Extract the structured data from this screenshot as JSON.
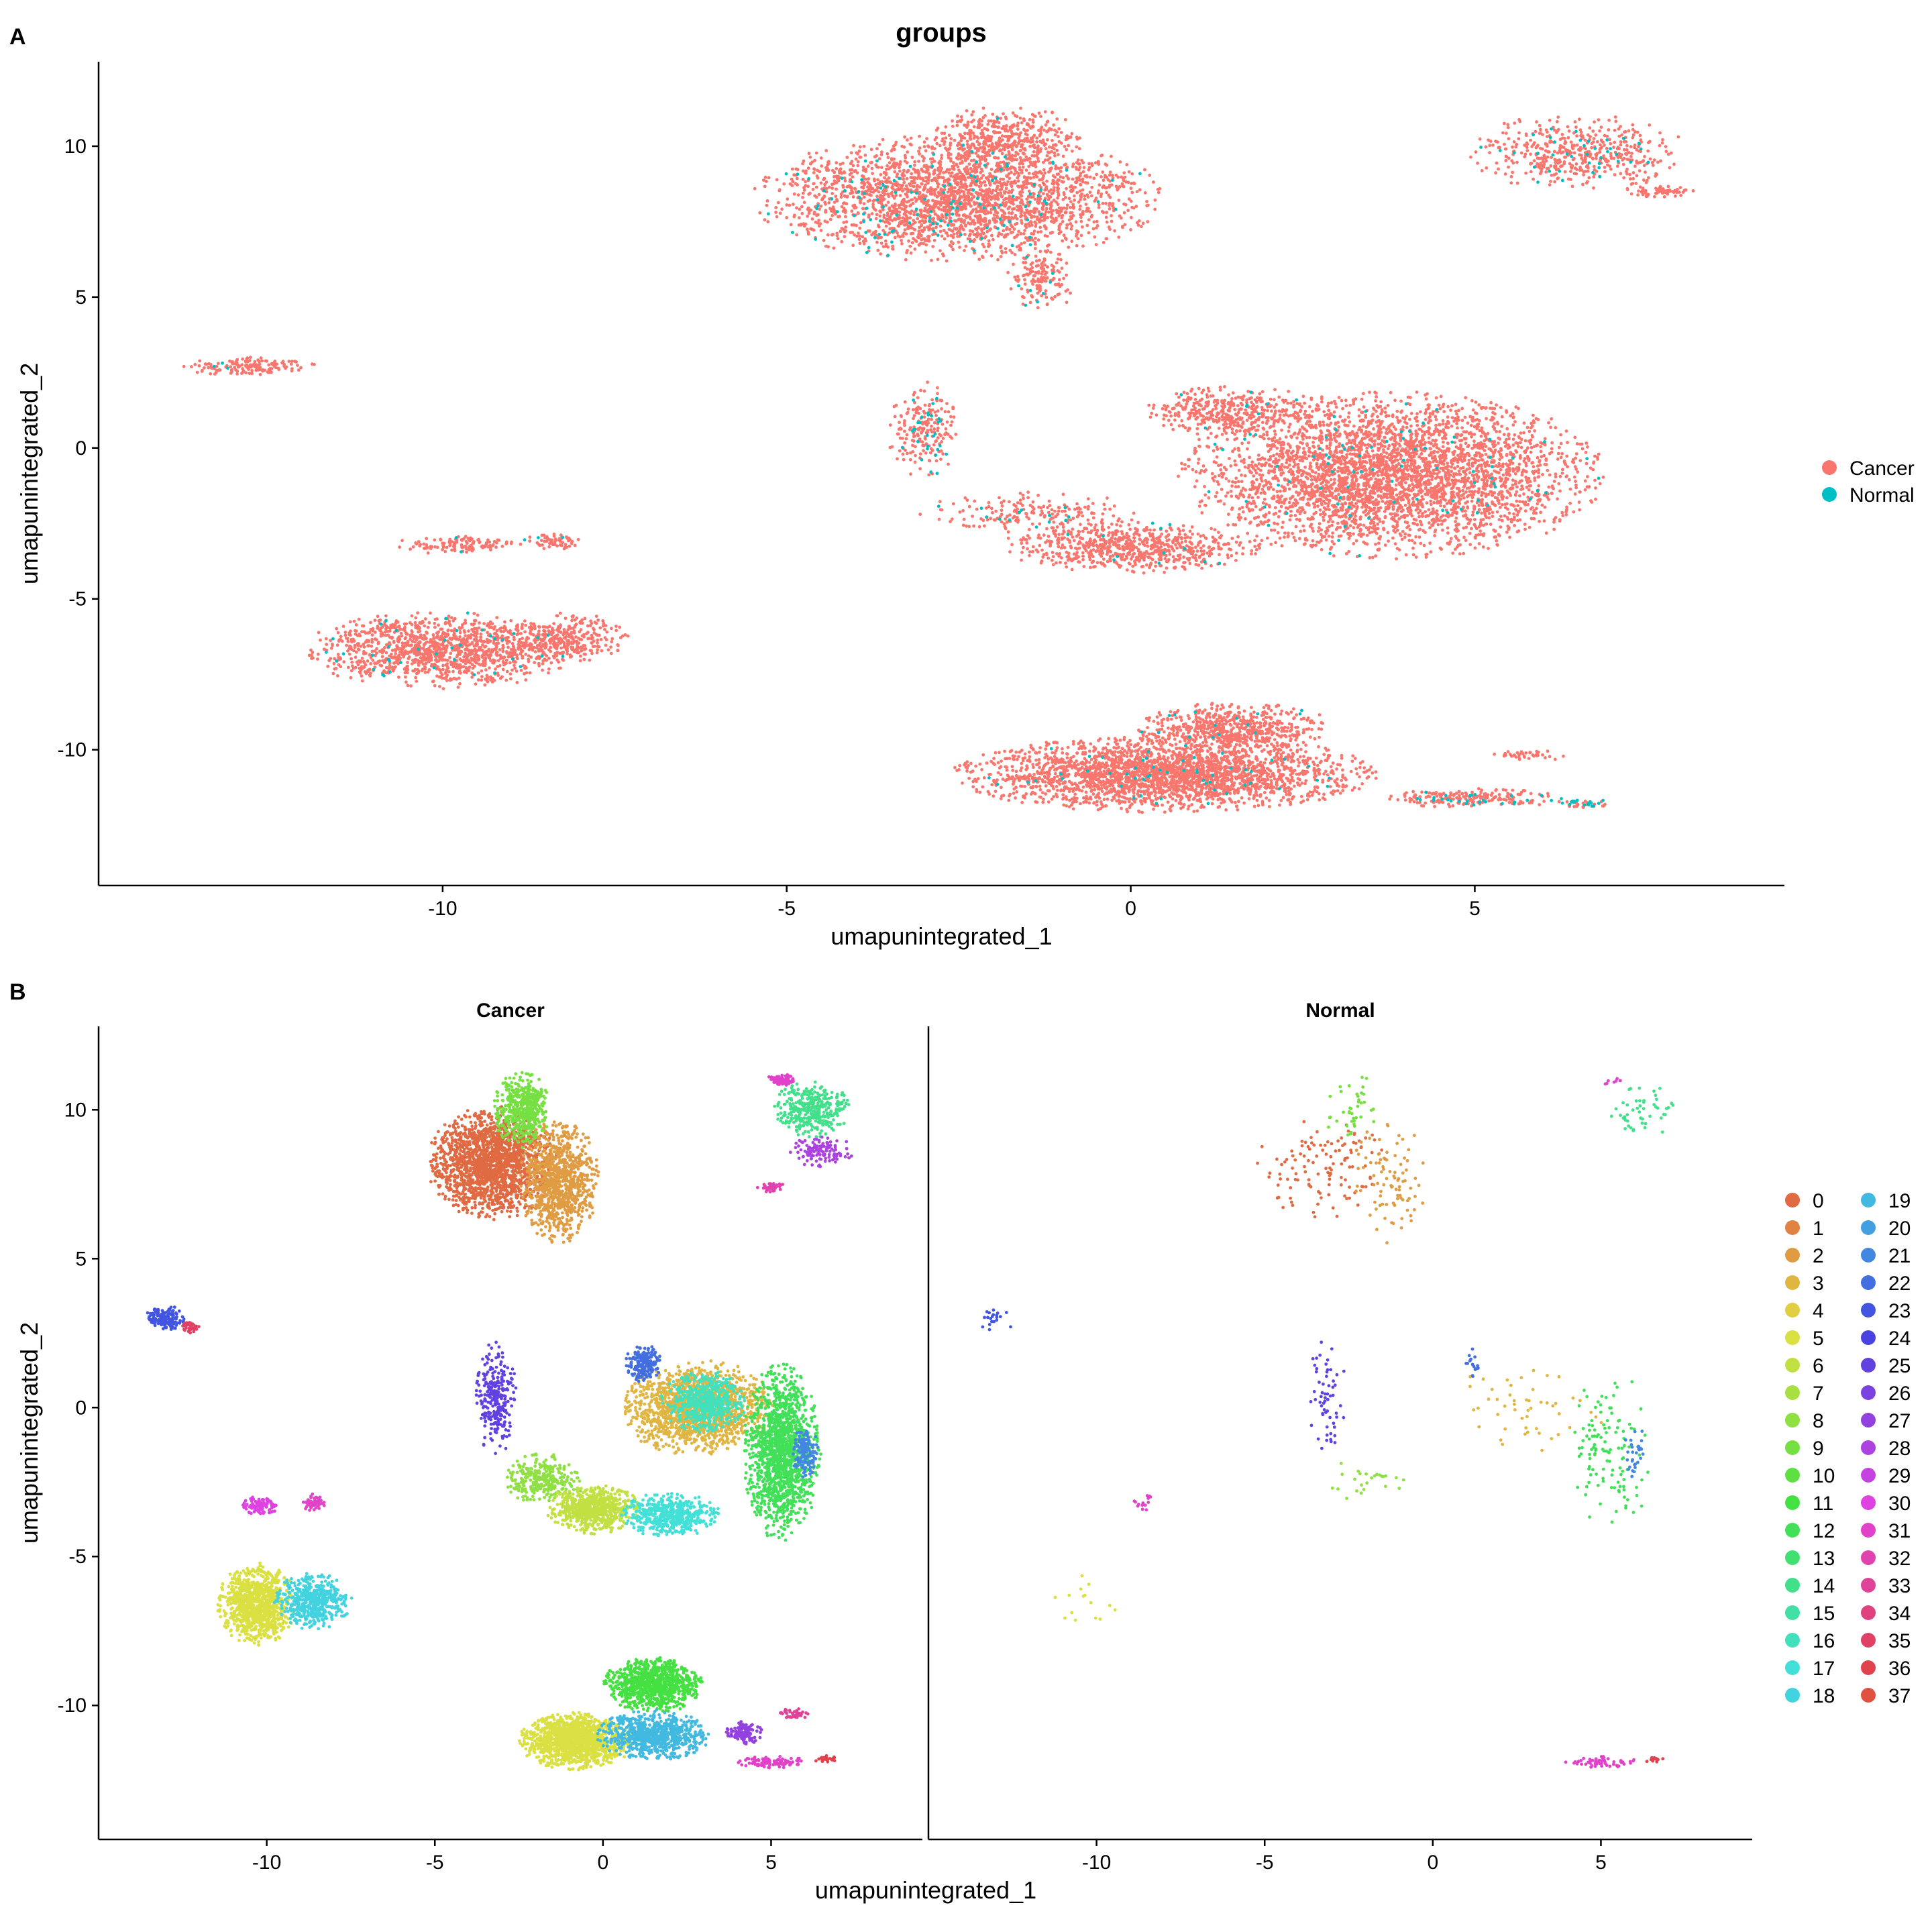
{
  "panels": {
    "a": {
      "letter": "A",
      "title": "groups"
    },
    "b": {
      "letter": "B"
    }
  },
  "colors": {
    "Cancer": "#F8766D",
    "Normal": "#00BFC4"
  },
  "chart_data": [
    {
      "type": "scatter",
      "title": "groups",
      "xlabel": "umapunintegrated_1",
      "ylabel": "umapunintegrated_2",
      "xlim": [
        -15,
        9.5
      ],
      "ylim": [
        -14.5,
        12.8
      ],
      "xticks": [
        -10,
        -5,
        0,
        5
      ],
      "yticks": [
        -10,
        -5,
        0,
        5,
        10
      ],
      "legend_position": "right",
      "legend": [
        "Cancer",
        "Normal"
      ],
      "grid": false,
      "regions": [
        {
          "name": "top-center",
          "cx": -2.5,
          "cy": 8.3,
          "rx": 2.8,
          "ry": 2.0,
          "n": 2600,
          "normal_frac": 0.04
        },
        {
          "name": "top-center-lobe",
          "cx": -1.8,
          "cy": 10.3,
          "rx": 1.0,
          "ry": 1.0,
          "n": 400,
          "normal_frac": 0.02
        },
        {
          "name": "top-center-tail",
          "cx": -1.3,
          "cy": 5.6,
          "rx": 0.5,
          "ry": 1.0,
          "n": 150,
          "normal_frac": 0.04
        },
        {
          "name": "top-right",
          "cx": 6.5,
          "cy": 9.8,
          "rx": 1.5,
          "ry": 1.2,
          "n": 500,
          "normal_frac": 0.06
        },
        {
          "name": "top-right-tail",
          "cx": 7.7,
          "cy": 8.5,
          "rx": 0.5,
          "ry": 0.2,
          "n": 60,
          "normal_frac": 0.0
        },
        {
          "name": "far-left",
          "cx": -12.8,
          "cy": 2.7,
          "rx": 0.9,
          "ry": 0.3,
          "n": 150,
          "normal_frac": 0.04
        },
        {
          "name": "middle-left-arm",
          "cx": -3.0,
          "cy": 0.6,
          "rx": 0.5,
          "ry": 1.6,
          "n": 220,
          "normal_frac": 0.12
        },
        {
          "name": "middle-bridge",
          "cx": -1.5,
          "cy": -2.2,
          "rx": 1.6,
          "ry": 0.7,
          "n": 200,
          "normal_frac": 0.06
        },
        {
          "name": "middle-center",
          "cx": 0.0,
          "cy": -3.3,
          "rx": 1.8,
          "ry": 0.8,
          "n": 700,
          "normal_frac": 0.02
        },
        {
          "name": "middle-right",
          "cx": 3.8,
          "cy": -0.9,
          "rx": 2.9,
          "ry": 2.6,
          "n": 3800,
          "normal_frac": 0.02
        },
        {
          "name": "middle-right-top",
          "cx": 1.5,
          "cy": 1.2,
          "rx": 1.2,
          "ry": 0.8,
          "n": 400,
          "normal_frac": 0.02
        },
        {
          "name": "lower-left",
          "cx": -10.0,
          "cy": -6.7,
          "rx": 1.9,
          "ry": 1.2,
          "n": 1300,
          "normal_frac": 0.02
        },
        {
          "name": "lower-left-right",
          "cx": -8.2,
          "cy": -6.3,
          "rx": 0.9,
          "ry": 0.8,
          "n": 300,
          "normal_frac": 0.0
        },
        {
          "name": "lower-left-top",
          "cx": -9.8,
          "cy": -3.2,
          "rx": 0.9,
          "ry": 0.3,
          "n": 120,
          "normal_frac": 0.03
        },
        {
          "name": "lower-left-islet",
          "cx": -8.4,
          "cy": -3.1,
          "rx": 0.4,
          "ry": 0.25,
          "n": 60,
          "normal_frac": 0.03
        },
        {
          "name": "bottom-center",
          "cx": 0.5,
          "cy": -10.8,
          "rx": 2.9,
          "ry": 1.2,
          "n": 2600,
          "normal_frac": 0.02
        },
        {
          "name": "bottom-center-top",
          "cx": 1.5,
          "cy": -9.3,
          "rx": 1.4,
          "ry": 0.8,
          "n": 600,
          "normal_frac": 0.02
        },
        {
          "name": "bottom-right-tail",
          "cx": 5.0,
          "cy": -11.6,
          "rx": 1.3,
          "ry": 0.3,
          "n": 200,
          "normal_frac": 0.15
        },
        {
          "name": "bottom-right-streak",
          "cx": 5.8,
          "cy": -10.2,
          "rx": 0.5,
          "ry": 0.2,
          "n": 40,
          "normal_frac": 0.0
        },
        {
          "name": "bottom-right-end",
          "cx": 6.6,
          "cy": -11.8,
          "rx": 0.4,
          "ry": 0.15,
          "n": 40,
          "normal_frac": 0.3
        }
      ]
    },
    {
      "type": "scatter",
      "facets": [
        "Cancer",
        "Normal"
      ],
      "xlabel": "umapunintegrated_1",
      "ylabel": "umapunintegrated_2",
      "xlim": [
        -15,
        9.5
      ],
      "ylim": [
        -14.5,
        12.8
      ],
      "xticks": [
        -10,
        -5,
        0,
        5
      ],
      "yticks": [
        -10,
        -5,
        0,
        5,
        10
      ],
      "legend_position": "right",
      "legend": [
        "0",
        "1",
        "2",
        "3",
        "4",
        "5",
        "6",
        "7",
        "8",
        "9",
        "10",
        "11",
        "12",
        "13",
        "14",
        "15",
        "16",
        "17",
        "18",
        "19",
        "20",
        "21",
        "22",
        "23",
        "24",
        "25",
        "26",
        "27",
        "28",
        "29",
        "30",
        "31",
        "32",
        "33",
        "34",
        "35",
        "36",
        "37"
      ],
      "grid": false,
      "regions": [
        {
          "name": "top-center-left",
          "cx": -3.3,
          "cy": 8.2,
          "rx": 1.8,
          "ry": 1.8,
          "cancer_n": 1800,
          "normal_n": 120,
          "cluster": 0
        },
        {
          "name": "top-center-right",
          "cx": -1.3,
          "cy": 7.6,
          "rx": 1.1,
          "ry": 2.0,
          "cancer_n": 1000,
          "normal_n": 90,
          "cluster": 2
        },
        {
          "name": "top-center-lobe",
          "cx": -2.4,
          "cy": 10.0,
          "rx": 0.8,
          "ry": 1.2,
          "cancer_n": 500,
          "normal_n": 40,
          "cluster": 9
        },
        {
          "name": "top-right-green",
          "cx": 6.2,
          "cy": 10.0,
          "rx": 1.1,
          "ry": 0.9,
          "cancer_n": 350,
          "normal_n": 50,
          "cluster": 14
        },
        {
          "name": "top-right-magenta",
          "cx": 5.3,
          "cy": 11.0,
          "rx": 0.4,
          "ry": 0.2,
          "cancer_n": 80,
          "normal_n": 8,
          "cluster": 31
        },
        {
          "name": "top-right-violet",
          "cx": 6.5,
          "cy": 8.6,
          "rx": 0.9,
          "ry": 0.5,
          "cancer_n": 120,
          "normal_n": 0,
          "cluster": 28
        },
        {
          "name": "top-right-pink",
          "cx": 5.0,
          "cy": 7.4,
          "rx": 0.4,
          "ry": 0.15,
          "cancer_n": 40,
          "normal_n": 0,
          "cluster": 32
        },
        {
          "name": "far-left",
          "cx": -13.0,
          "cy": 3.0,
          "rx": 0.6,
          "ry": 0.4,
          "cancer_n": 150,
          "normal_n": 20,
          "cluster": 23
        },
        {
          "name": "far-left-pink",
          "cx": -12.3,
          "cy": 2.7,
          "rx": 0.3,
          "ry": 0.2,
          "cancer_n": 50,
          "normal_n": 0,
          "cluster": 35
        },
        {
          "name": "middle-left-arm",
          "cx": -3.2,
          "cy": 0.3,
          "rx": 0.6,
          "ry": 1.8,
          "cancer_n": 280,
          "normal_n": 60,
          "cluster": 25
        },
        {
          "name": "middle-bridge",
          "cx": -1.8,
          "cy": -2.4,
          "rx": 1.2,
          "ry": 0.8,
          "cancer_n": 300,
          "normal_n": 25,
          "cluster": 8
        },
        {
          "name": "middle-center-olive",
          "cx": -0.3,
          "cy": -3.4,
          "rx": 1.3,
          "ry": 0.8,
          "cancer_n": 700,
          "normal_n": 0,
          "cluster": 6
        },
        {
          "name": "middle-center-teal",
          "cx": 2.0,
          "cy": -3.6,
          "rx": 1.4,
          "ry": 0.7,
          "cancer_n": 500,
          "normal_n": 0,
          "cluster": 17
        },
        {
          "name": "middle-right-orange",
          "cx": 2.8,
          "cy": 0.0,
          "rx": 2.2,
          "ry": 1.5,
          "cancer_n": 1500,
          "normal_n": 50,
          "cluster": 3
        },
        {
          "name": "middle-right-green",
          "cx": 5.3,
          "cy": -1.5,
          "rx": 1.1,
          "ry": 2.8,
          "cancer_n": 1500,
          "normal_n": 120,
          "cluster": 12
        },
        {
          "name": "middle-right-teal",
          "cx": 3.0,
          "cy": 0.2,
          "rx": 1.2,
          "ry": 1.0,
          "cancer_n": 500,
          "normal_n": 0,
          "cluster": 16
        },
        {
          "name": "middle-right-blue",
          "cx": 1.2,
          "cy": 1.5,
          "rx": 0.5,
          "ry": 0.6,
          "cancer_n": 200,
          "normal_n": 15,
          "cluster": 22
        },
        {
          "name": "middle-right-sky",
          "cx": 6.0,
          "cy": -1.5,
          "rx": 0.4,
          "ry": 0.8,
          "cancer_n": 150,
          "normal_n": 30,
          "cluster": 21
        },
        {
          "name": "lower-left-olive",
          "cx": -10.3,
          "cy": -6.6,
          "rx": 1.1,
          "ry": 1.3,
          "cancer_n": 1000,
          "normal_n": 15,
          "cluster": 5
        },
        {
          "name": "lower-left-teal",
          "cx": -8.6,
          "cy": -6.5,
          "rx": 1.1,
          "ry": 0.9,
          "cancer_n": 500,
          "normal_n": 0,
          "cluster": 18
        },
        {
          "name": "lower-left-magenta",
          "cx": -10.2,
          "cy": -3.3,
          "rx": 0.5,
          "ry": 0.3,
          "cancer_n": 100,
          "normal_n": 0,
          "cluster": 30
        },
        {
          "name": "lower-left-magenta-2",
          "cx": -8.6,
          "cy": -3.2,
          "rx": 0.3,
          "ry": 0.3,
          "cancer_n": 60,
          "normal_n": 15,
          "cluster": 31
        },
        {
          "name": "bottom-olive",
          "cx": -0.8,
          "cy": -11.2,
          "rx": 1.6,
          "ry": 0.9,
          "cancer_n": 1300,
          "normal_n": 0,
          "cluster": 5
        },
        {
          "name": "bottom-green",
          "cx": 1.5,
          "cy": -9.3,
          "rx": 1.4,
          "ry": 0.9,
          "cancer_n": 900,
          "normal_n": 0,
          "cluster": 11
        },
        {
          "name": "bottom-teal",
          "cx": 1.5,
          "cy": -11.0,
          "rx": 1.6,
          "ry": 0.8,
          "cancer_n": 800,
          "normal_n": 0,
          "cluster": 19
        },
        {
          "name": "bottom-violet",
          "cx": 4.2,
          "cy": -10.9,
          "rx": 0.5,
          "ry": 0.4,
          "cancer_n": 120,
          "normal_n": 0,
          "cluster": 27
        },
        {
          "name": "bottom-magenta",
          "cx": 5.0,
          "cy": -11.9,
          "rx": 1.0,
          "ry": 0.2,
          "cancer_n": 100,
          "normal_n": 60,
          "cluster": 31
        },
        {
          "name": "bottom-streak",
          "cx": 5.7,
          "cy": -10.3,
          "rx": 0.5,
          "ry": 0.2,
          "cancer_n": 40,
          "normal_n": 0,
          "cluster": 33
        },
        {
          "name": "bottom-end",
          "cx": 6.6,
          "cy": -11.8,
          "rx": 0.3,
          "ry": 0.12,
          "cancer_n": 30,
          "normal_n": 12,
          "cluster": 36
        }
      ]
    }
  ]
}
